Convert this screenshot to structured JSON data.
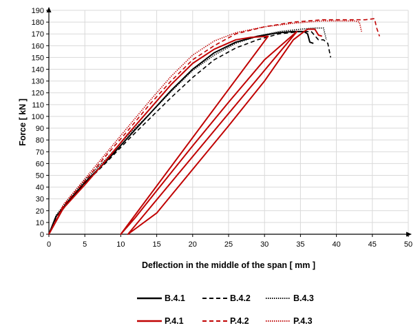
{
  "chart_data": {
    "type": "line",
    "title": "",
    "xlabel": "Deflection in the middle of the span [ mm ]",
    "ylabel": "Force [ kN ]",
    "xlim": [
      0,
      50
    ],
    "ylim": [
      0,
      190
    ],
    "xticks": [
      "0",
      "5",
      "10",
      "15",
      "20",
      "25",
      "30",
      "35",
      "40",
      "45",
      "50"
    ],
    "yticks": [
      "0",
      "10",
      "20",
      "30",
      "40",
      "50",
      "60",
      "70",
      "80",
      "90",
      "100",
      "110",
      "120",
      "130",
      "140",
      "150",
      "160",
      "170",
      "180",
      "190"
    ],
    "grid": true,
    "legend_position": "bottom",
    "series": [
      {
        "name": "B.4.1",
        "color": "#000000",
        "dash": "solid",
        "x": [
          0,
          1,
          3,
          5,
          8,
          11,
          14,
          17,
          20,
          23,
          26,
          29,
          32,
          34,
          35.5,
          36,
          36.3,
          36.8
        ],
        "y": [
          0,
          15,
          30,
          44,
          62,
          82,
          102,
          122,
          140,
          154,
          163,
          168,
          171,
          172,
          172,
          170,
          163,
          162
        ]
      },
      {
        "name": "B.4.2",
        "color": "#000000",
        "dash": "dashed",
        "x": [
          0,
          1,
          3,
          5,
          8,
          11,
          14,
          17,
          20,
          23,
          26,
          29,
          32,
          35,
          36.5,
          37.5,
          38.2,
          38.8,
          39.2
        ],
        "y": [
          0,
          14,
          29,
          43,
          61,
          80,
          98,
          116,
          133,
          148,
          158,
          165,
          170,
          172,
          172,
          165,
          165,
          162,
          150
        ]
      },
      {
        "name": "B.4.3",
        "color": "#000000",
        "dash": "dotted",
        "x": [
          0,
          1,
          3,
          5,
          8,
          11,
          14,
          17,
          20,
          23,
          26,
          29,
          32,
          35,
          37,
          38.2,
          38.6
        ],
        "y": [
          0,
          16,
          32,
          46,
          64,
          84,
          102,
          121,
          139,
          152,
          162,
          168,
          172,
          174,
          175,
          175,
          165
        ]
      },
      {
        "name": "P.4.1",
        "color": "#c00000",
        "dash": "solid",
        "x": [
          0,
          2,
          5,
          8,
          11,
          14,
          17,
          20,
          23,
          26,
          28,
          30.5,
          10,
          12,
          15,
          20,
          25,
          30,
          34.5,
          11,
          15,
          20,
          25,
          30,
          34,
          35.5,
          36,
          37,
          37.5,
          38
        ],
        "y": [
          0,
          22,
          42,
          63,
          85,
          106,
          127,
          145,
          157,
          165,
          167,
          168,
          0,
          14,
          37,
          75,
          112,
          148,
          172,
          0,
          18,
          55,
          92,
          130,
          165,
          172,
          174,
          174,
          169,
          168
        ]
      },
      {
        "name": "P.4.2",
        "color": "#c00000",
        "dash": "dashed",
        "x": [
          0,
          2,
          5,
          8,
          11,
          14,
          17,
          20,
          23,
          26,
          30,
          34,
          38,
          42,
          44,
          45.3,
          45.6,
          46
        ],
        "y": [
          0,
          24,
          45,
          67,
          88,
          110,
          130,
          148,
          160,
          170,
          176,
          180,
          182,
          182,
          182,
          183,
          175,
          168
        ]
      },
      {
        "name": "P.4.3",
        "color": "#c00000",
        "dash": "dotted",
        "x": [
          0,
          2,
          5,
          8,
          11,
          14,
          17,
          20,
          23,
          26,
          30,
          34,
          38,
          41,
          42.5,
          43.2,
          43.5
        ],
        "y": [
          0,
          25,
          47,
          69,
          91,
          113,
          134,
          152,
          164,
          171,
          176,
          179,
          181,
          181,
          181,
          180,
          172
        ]
      }
    ]
  }
}
